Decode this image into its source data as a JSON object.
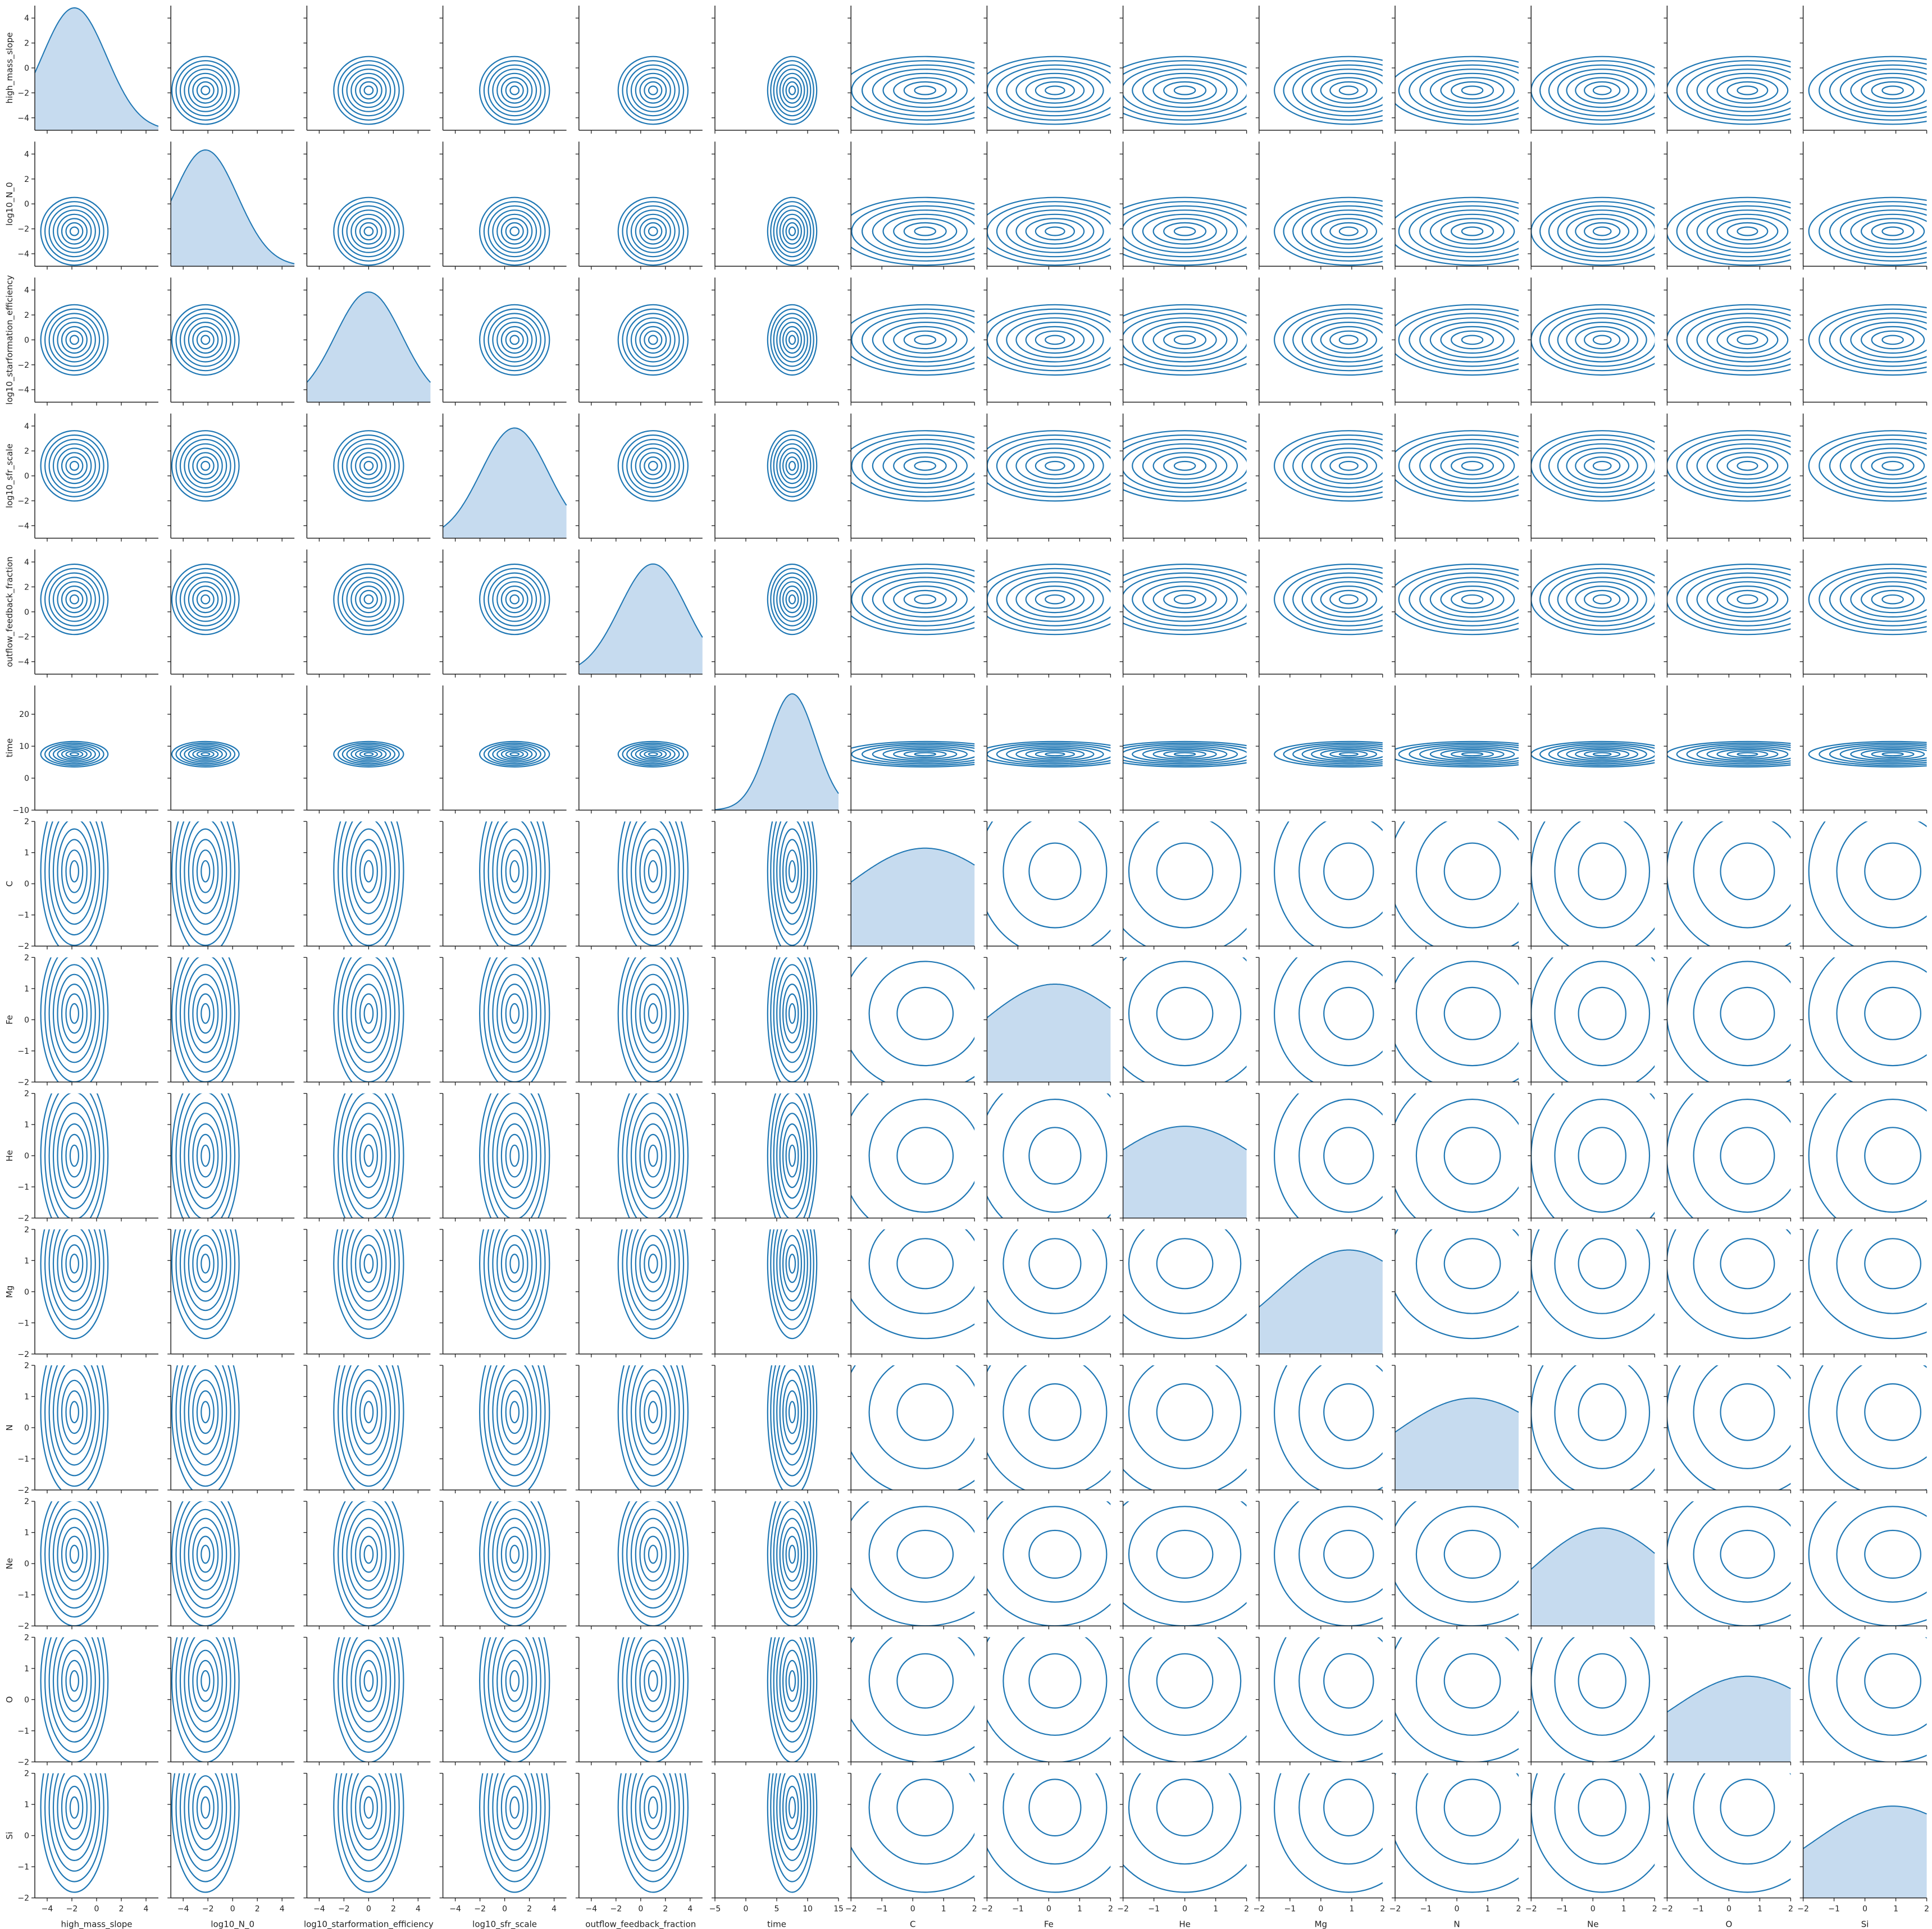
{
  "chart_data": {
    "type": "pairplot",
    "title": "",
    "upper": "kde-contour",
    "lower": "kde-contour",
    "diagonal": "kde-filled",
    "grid": false,
    "legend": "none",
    "colors": {
      "line": "#1f77b4",
      "fill": "#c6dbef",
      "axis": "#222222"
    },
    "variables": [
      {
        "name": "high_mass_slope",
        "range": [
          -5,
          5
        ],
        "ticks": [
          -4,
          -2,
          0,
          2,
          4
        ],
        "peak": -1.8,
        "spread": 2.6,
        "density_max": 1.0
      },
      {
        "name": "log10_N_0",
        "range": [
          -5,
          5
        ],
        "ticks": [
          -4,
          -2,
          0,
          2,
          4
        ],
        "peak": -2.2,
        "spread": 2.6,
        "density_max": 0.95
      },
      {
        "name": "log10_starformation_efficiency",
        "range": [
          -5,
          5
        ],
        "ticks": [
          -4,
          -2,
          0,
          2,
          4
        ],
        "peak": 0.0,
        "spread": 2.7,
        "density_max": 0.9
      },
      {
        "name": "log10_sfr_scale",
        "range": [
          -5,
          5
        ],
        "ticks": [
          -4,
          -2,
          0,
          2,
          4
        ],
        "peak": 0.8,
        "spread": 2.7,
        "density_max": 0.9
      },
      {
        "name": "outflow_feedback_fraction",
        "range": [
          -5,
          5
        ],
        "ticks": [
          -4,
          -2,
          0,
          2,
          4
        ],
        "peak": 1.0,
        "spread": 2.7,
        "density_max": 0.9
      },
      {
        "name": "time",
        "range": [
          -10,
          29
        ],
        "ticks": [
          -10,
          0,
          10,
          20
        ],
        "ticks_x": [
          -5,
          0,
          5,
          10,
          15
        ],
        "xrange": [
          -5,
          15
        ],
        "peak": 7.5,
        "spread": 3.8,
        "density_max": 0.95
      },
      {
        "name": "C",
        "range": [
          -2,
          2
        ],
        "ticks": [
          -2,
          -1,
          0,
          1,
          2
        ],
        "peak": 0.4,
        "spread": 2.6,
        "density_max": 0.8
      },
      {
        "name": "Fe",
        "range": [
          -2,
          2
        ],
        "ticks": [
          -2,
          -1,
          0,
          1,
          2
        ],
        "peak": 0.2,
        "spread": 2.4,
        "density_max": 0.8
      },
      {
        "name": "He",
        "range": [
          -2,
          2
        ],
        "ticks": [
          -2,
          -1,
          0,
          1,
          2
        ],
        "peak": 0.0,
        "spread": 2.6,
        "density_max": 0.75
      },
      {
        "name": "Mg",
        "range": [
          -2,
          2
        ],
        "ticks": [
          -2,
          -1,
          0,
          1,
          2
        ],
        "peak": 0.9,
        "spread": 2.3,
        "density_max": 0.85
      },
      {
        "name": "N",
        "range": [
          -2,
          2
        ],
        "ticks": [
          -2,
          -1,
          0,
          1,
          2
        ],
        "peak": 0.5,
        "spread": 2.6,
        "density_max": 0.75
      },
      {
        "name": "Ne",
        "range": [
          -2,
          2
        ],
        "ticks": [
          -2,
          -1,
          0,
          1,
          2
        ],
        "peak": 0.3,
        "spread": 2.2,
        "density_max": 0.8
      },
      {
        "name": "O",
        "range": [
          -2,
          2
        ],
        "ticks": [
          -2,
          -1,
          0,
          1,
          2
        ],
        "peak": 0.6,
        "spread": 2.5,
        "density_max": 0.7
      },
      {
        "name": "Si",
        "range": [
          -2,
          2
        ],
        "ticks": [
          -2,
          -1,
          0,
          1,
          2
        ],
        "peak": 0.9,
        "spread": 2.6,
        "density_max": 0.75
      }
    ]
  }
}
